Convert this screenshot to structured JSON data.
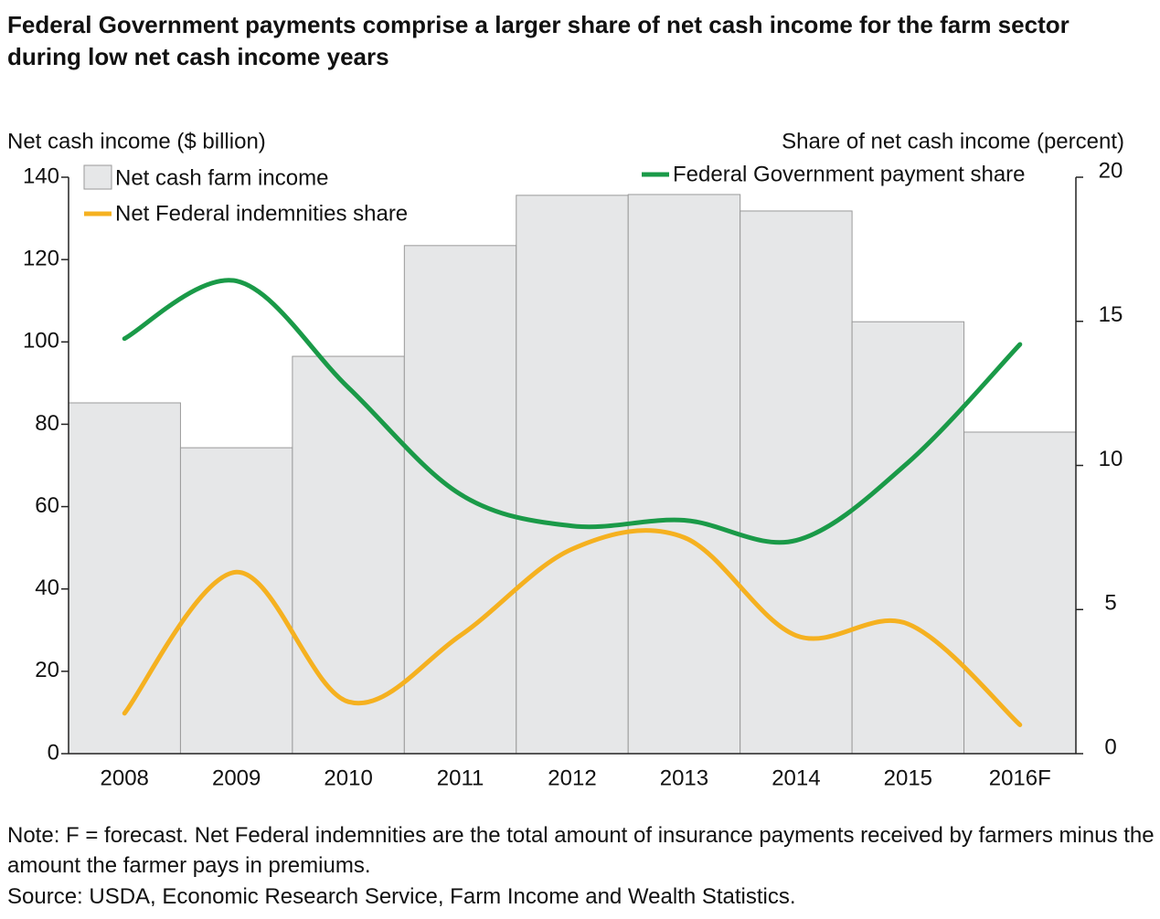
{
  "chart_data": {
    "type": "bar",
    "title": "Federal Government payments comprise a larger share of net cash income for the farm sector during low net cash income years",
    "y_label": "Net cash income ($ billion)",
    "y2_label": "Share of net cash income (percent)",
    "categories": [
      "2008",
      "2009",
      "2010",
      "2011",
      "2012",
      "2013",
      "2014",
      "2015",
      "2016F"
    ],
    "series": [
      {
        "name": "Net cash farm income",
        "type": "bar",
        "color": "#e6e7e8",
        "values": [
          85.2,
          74.3,
          96.5,
          123.4,
          135.6,
          135.8,
          131.8,
          104.9,
          78.1
        ]
      },
      {
        "name": "Net Federal indemnities share",
        "type": "line",
        "axis": "y2",
        "color": "#f5b120",
        "values": [
          1.4,
          6.3,
          1.8,
          4.1,
          7.1,
          7.5,
          4.1,
          4.5,
          1.0
        ]
      },
      {
        "name": "Federal Government payment share",
        "type": "line",
        "axis": "y2",
        "color": "#1a9a48",
        "values": [
          14.4,
          16.4,
          12.7,
          9.0,
          7.9,
          8.1,
          7.4,
          10.1,
          14.2
        ]
      }
    ],
    "ylim": [
      0,
      140
    ],
    "yticks": [
      0,
      20,
      40,
      60,
      80,
      100,
      120,
      140
    ],
    "y2lim": [
      0,
      20
    ],
    "y2ticks": [
      0,
      5,
      10,
      15,
      20
    ],
    "note": "Note: F = forecast. Net Federal indemnities are the total amount of insurance payments received by farmers minus the amount the farmer pays in premiums.",
    "source": "Source: USDA, Economic Research Service, Farm Income and Wealth Statistics."
  }
}
